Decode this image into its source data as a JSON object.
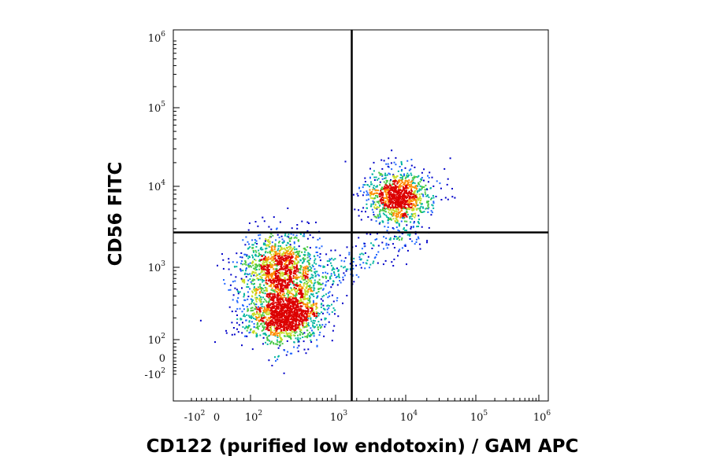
{
  "chart_data": {
    "type": "scatter",
    "title": "",
    "xlabel": "CD122 (purified low endotoxin) / GAM APC",
    "ylabel": "CD56 FITC",
    "x_scale": "biexponential",
    "y_scale": "biexponential",
    "xlim": [
      "-10^2",
      "10^6"
    ],
    "ylim": [
      "-10^2",
      "10^6"
    ],
    "x_ticks": [
      {
        "base": "-10",
        "exp": "2"
      },
      {
        "base": "0",
        "exp": ""
      },
      {
        "base": "10",
        "exp": "2"
      },
      {
        "base": "10",
        "exp": "3"
      },
      {
        "base": "10",
        "exp": "4"
      },
      {
        "base": "10",
        "exp": "5"
      },
      {
        "base": "10",
        "exp": "6"
      }
    ],
    "y_ticks": [
      {
        "base": "10",
        "exp": "6"
      },
      {
        "base": "10",
        "exp": "5"
      },
      {
        "base": "10",
        "exp": "4"
      },
      {
        "base": "10",
        "exp": "3"
      },
      {
        "base": "10",
        "exp": "2"
      },
      {
        "base": "0",
        "exp": ""
      },
      {
        "base": "-10",
        "exp": "2"
      }
    ],
    "quadrant_gate": {
      "x": 1700,
      "y": 2700
    },
    "density_colors": [
      "#0000c8",
      "#1e64ff",
      "#00b4a0",
      "#46c846",
      "#c8dc28",
      "#ff8c00",
      "#dc0000"
    ],
    "populations": [
      {
        "x_center": 250,
        "y_center": 220,
        "count": 1500
      },
      {
        "x_center": 220,
        "y_center": 900,
        "count": 1400
      },
      {
        "x_center": 7500,
        "y_center": 7500,
        "count": 1100
      },
      {
        "x_center": 2500,
        "y_center": 1400,
        "count": 220
      }
    ],
    "grid": false,
    "legend": "none"
  }
}
